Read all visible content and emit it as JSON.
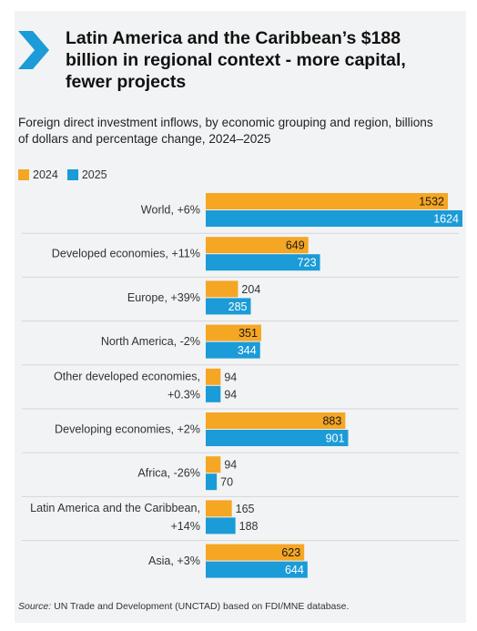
{
  "header": {
    "title": "Latin America and the Caribbean’s $188 billion in regional context - more capital, fewer projects",
    "subtitle": "Foreign direct investment inflows, by economic grouping and region, billions of dollars and percentage change, 2024–2025"
  },
  "colors": {
    "y2024": "#f5a623",
    "y2025": "#1b9bd7",
    "arrow": "#1b9bd7"
  },
  "chart_data": {
    "type": "bar",
    "orientation": "horizontal",
    "categories": [
      [
        "World, +6%"
      ],
      [
        "Developed economies, +11%"
      ],
      [
        "Europe, +39%"
      ],
      [
        "North America, -2%"
      ],
      [
        "Other developed economies,",
        "+0.3%"
      ],
      [
        "Developing economies, +2%"
      ],
      [
        "Africa, -26%"
      ],
      [
        "Latin America and the Caribbean,",
        "+14%"
      ],
      [
        "Asia, +3%"
      ]
    ],
    "series": [
      {
        "name": "2024",
        "values": [
          1532,
          649,
          204,
          351,
          94,
          883,
          94,
          165,
          623
        ]
      },
      {
        "name": "2025",
        "values": [
          1624,
          723,
          285,
          344,
          94,
          901,
          70,
          188,
          644
        ]
      }
    ],
    "xlim": [
      0,
      1624
    ],
    "legend": "top-left",
    "grid": false
  },
  "source": {
    "label": "Source:",
    "text": " UN Trade and Development (UNCTAD) based on FDI/MNE database."
  }
}
